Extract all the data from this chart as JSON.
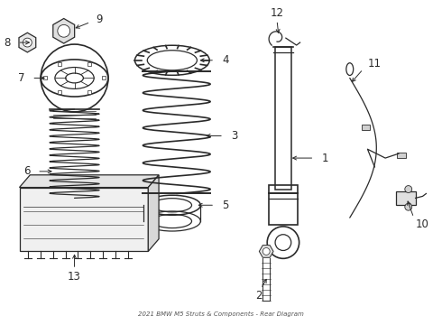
{
  "title": "2021 BMW M5 Struts & Components - Rear Diagram",
  "bg_color": "#ffffff",
  "lc": "#2a2a2a",
  "lw": 0.9
}
